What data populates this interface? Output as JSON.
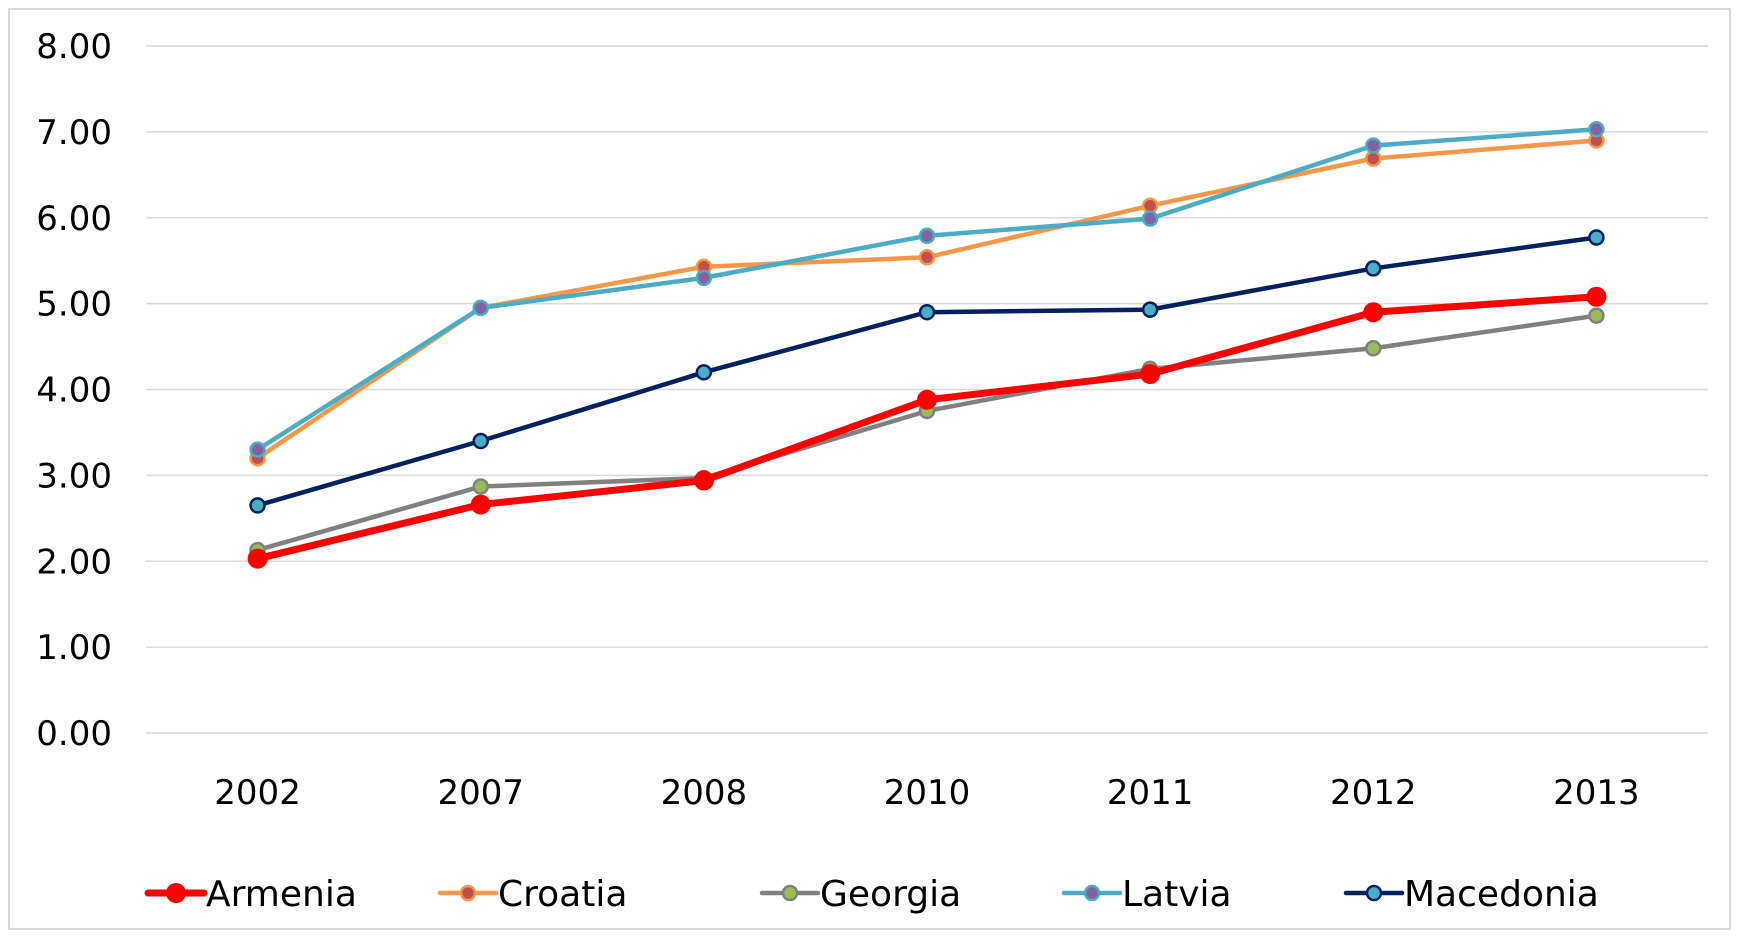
{
  "chart_data": {
    "type": "line",
    "title": "",
    "xlabel": "",
    "ylabel": "",
    "categories": [
      "2002",
      "2007",
      "2008",
      "2010",
      "2011",
      "2012",
      "2013"
    ],
    "ylim": [
      0,
      8
    ],
    "y_ticks": [
      "0.00",
      "1.00",
      "2.00",
      "3.00",
      "4.00",
      "5.00",
      "6.00",
      "7.00",
      "8.00"
    ],
    "grid": true,
    "legend_position": "bottom",
    "series": [
      {
        "name": "Armenia",
        "color": "#ff0000",
        "marker_color": "#ff0000",
        "values": [
          2.03,
          2.66,
          2.94,
          3.88,
          4.18,
          4.9,
          5.08
        ]
      },
      {
        "name": "Croatia",
        "color": "#f79646",
        "marker_color": "#c0504d",
        "values": [
          3.2,
          4.95,
          5.43,
          5.54,
          6.14,
          6.69,
          6.9
        ]
      },
      {
        "name": "Georgia",
        "color": "#808080",
        "marker_color": "#9bbb59",
        "values": [
          2.13,
          2.87,
          2.97,
          3.75,
          4.24,
          4.48,
          4.86
        ]
      },
      {
        "name": "Latvia",
        "color": "#4bacc6",
        "marker_color": "#8064a2",
        "values": [
          3.3,
          4.95,
          5.3,
          5.79,
          5.99,
          6.84,
          7.03
        ]
      },
      {
        "name": "Macedonia",
        "color": "#002060",
        "marker_color": "#4bacc6",
        "values": [
          2.65,
          3.4,
          4.2,
          4.9,
          4.93,
          5.41,
          5.77
        ]
      }
    ]
  }
}
